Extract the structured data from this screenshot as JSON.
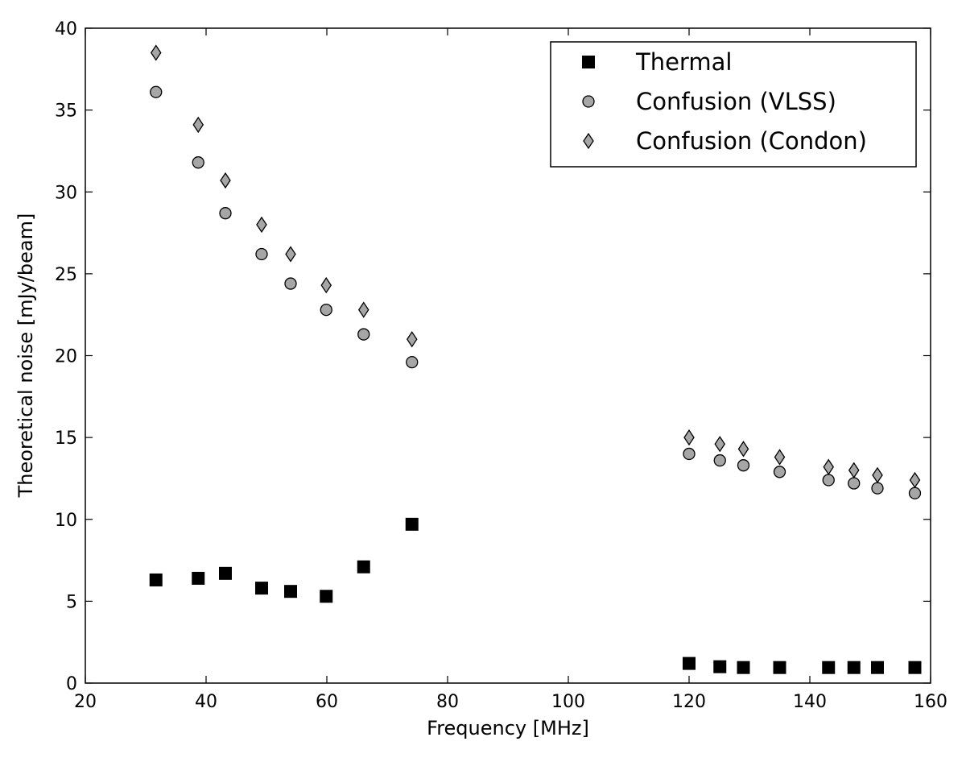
{
  "chart_data": {
    "type": "scatter",
    "xlabel": "Frequency [MHz]",
    "ylabel": "Theoretical noise [mJy/beam]",
    "xlim": [
      20,
      160
    ],
    "ylim": [
      0,
      40
    ],
    "xticks": [
      20,
      40,
      60,
      80,
      100,
      120,
      140,
      160
    ],
    "yticks": [
      0,
      5,
      10,
      15,
      20,
      25,
      30,
      35,
      40
    ],
    "grid": false,
    "legend_position": "top-right",
    "series": [
      {
        "name": "Thermal",
        "marker": "square",
        "color": "#000000",
        "points": [
          [
            31.7,
            6.3
          ],
          [
            38.7,
            6.4
          ],
          [
            43.2,
            6.7
          ],
          [
            49.2,
            5.8
          ],
          [
            54.0,
            5.6
          ],
          [
            59.9,
            5.3
          ],
          [
            66.1,
            7.1
          ],
          [
            74.1,
            9.7
          ],
          [
            120.0,
            1.2
          ],
          [
            125.1,
            1.0
          ],
          [
            129.0,
            0.95
          ],
          [
            135.0,
            0.95
          ],
          [
            143.1,
            0.95
          ],
          [
            147.3,
            0.95
          ],
          [
            151.2,
            0.95
          ],
          [
            157.4,
            0.95
          ]
        ]
      },
      {
        "name": "Confusion (VLSS)",
        "marker": "circle",
        "color": "#a6a6a6",
        "points": [
          [
            31.7,
            36.1
          ],
          [
            38.7,
            31.8
          ],
          [
            43.2,
            28.7
          ],
          [
            49.2,
            26.2
          ],
          [
            54.0,
            24.4
          ],
          [
            59.9,
            22.8
          ],
          [
            66.1,
            21.3
          ],
          [
            74.1,
            19.6
          ],
          [
            120.0,
            14.0
          ],
          [
            125.1,
            13.6
          ],
          [
            129.0,
            13.3
          ],
          [
            135.0,
            12.9
          ],
          [
            143.1,
            12.4
          ],
          [
            147.3,
            12.2
          ],
          [
            151.2,
            11.9
          ],
          [
            157.4,
            11.6
          ]
        ]
      },
      {
        "name": "Confusion (Condon)",
        "marker": "diamond",
        "color": "#a6a6a6",
        "points": [
          [
            31.7,
            38.5
          ],
          [
            38.7,
            34.1
          ],
          [
            43.2,
            30.7
          ],
          [
            49.2,
            28.0
          ],
          [
            54.0,
            26.2
          ],
          [
            59.9,
            24.3
          ],
          [
            66.1,
            22.8
          ],
          [
            74.1,
            21.0
          ],
          [
            120.0,
            15.0
          ],
          [
            125.1,
            14.6
          ],
          [
            129.0,
            14.3
          ],
          [
            135.0,
            13.8
          ],
          [
            143.1,
            13.2
          ],
          [
            147.3,
            13.0
          ],
          [
            151.2,
            12.7
          ],
          [
            157.4,
            12.4
          ]
        ]
      }
    ]
  }
}
